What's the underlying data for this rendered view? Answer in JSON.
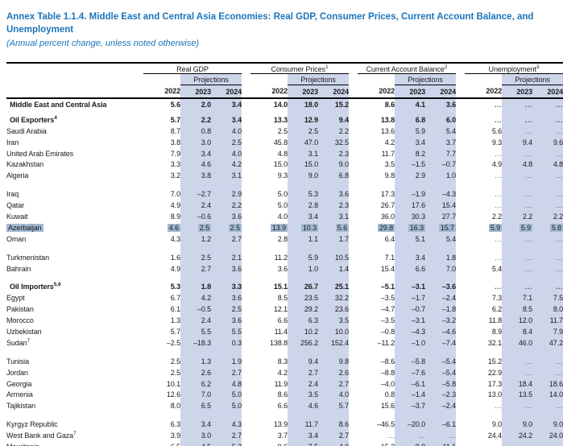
{
  "title": {
    "line1": "Annex Table 1.1.4. Middle East and Central Asia Economies: Real GDP, Consumer Prices, Current Account Balance, and",
    "line2": "Unemployment",
    "subtitle": "(Annual percent change, unless noted otherwise)"
  },
  "colors": {
    "title_blue": "#1b75bc",
    "projection_shade": "#cdd5ea",
    "selection_highlight": "#a3b9d4",
    "rule_black": "#000000"
  },
  "header": {
    "groups": [
      {
        "label": "Real GDP",
        "sup": ""
      },
      {
        "label": "Consumer Prices",
        "sup": "1"
      },
      {
        "label": "Current Account Balance",
        "sup": "2"
      },
      {
        "label": "Unemployment",
        "sup": "3"
      }
    ],
    "projections_label": "Projections",
    "years": [
      "2022",
      "2023",
      "2024"
    ]
  },
  "rows": [
    {
      "name": "Middle East and Central Asia",
      "sup": "",
      "style": "group",
      "highlight": false,
      "gap_before": "",
      "values": [
        "5.6",
        "2.0",
        "3.4",
        "14.0",
        "18.0",
        "15.2",
        "8.6",
        "4.1",
        "3.6",
        "...",
        "...",
        "..."
      ]
    },
    {
      "name": "Oil Exporters",
      "sup": "4",
      "style": "group",
      "highlight": false,
      "gap_before": "small",
      "values": [
        "5.7",
        "2.2",
        "3.4",
        "13.3",
        "12.9",
        "9.4",
        "13.8",
        "6.8",
        "6.0",
        "...",
        "...",
        "..."
      ]
    },
    {
      "name": "Saudi Arabia",
      "sup": "",
      "style": "country",
      "highlight": false,
      "gap_before": "",
      "values": [
        "8.7",
        "0.8",
        "4.0",
        "2.5",
        "2.5",
        "2.2",
        "13.6",
        "5.9",
        "5.4",
        "5.6",
        "...",
        "..."
      ]
    },
    {
      "name": "Iran",
      "sup": "",
      "style": "country",
      "highlight": false,
      "gap_before": "",
      "values": [
        "3.8",
        "3.0",
        "2.5",
        "45.8",
        "47.0",
        "32.5",
        "4.2",
        "3.4",
        "3.7",
        "9.3",
        "9.4",
        "9.6"
      ]
    },
    {
      "name": "United Arab Emirates",
      "sup": "",
      "style": "country",
      "highlight": false,
      "gap_before": "",
      "values": [
        "7.9",
        "3.4",
        "4.0",
        "4.8",
        "3.1",
        "2.3",
        "11.7",
        "8.2",
        "7.7",
        "...",
        "...",
        "..."
      ]
    },
    {
      "name": "Kazakhstan",
      "sup": "",
      "style": "country",
      "highlight": false,
      "gap_before": "",
      "values": [
        "3.3",
        "4.6",
        "4.2",
        "15.0",
        "15.0",
        "9.0",
        "3.5",
        "–1.5",
        "–0.7",
        "4.9",
        "4.8",
        "4.8"
      ]
    },
    {
      "name": "Algeria",
      "sup": "",
      "style": "country",
      "highlight": false,
      "gap_before": "",
      "values": [
        "3.2",
        "3.8",
        "3.1",
        "9.3",
        "9.0",
        "6.8",
        "9.8",
        "2.9",
        "1.0",
        "...",
        "...",
        "..."
      ]
    },
    {
      "name": "Iraq",
      "sup": "",
      "style": "country",
      "highlight": false,
      "gap_before": "normal",
      "values": [
        "7.0",
        "–2.7",
        "2.9",
        "5.0",
        "5.3",
        "3.6",
        "17.3",
        "–1.9",
        "–4.3",
        "...",
        "...",
        "..."
      ]
    },
    {
      "name": "Qatar",
      "sup": "",
      "style": "country",
      "highlight": false,
      "gap_before": "",
      "values": [
        "4.9",
        "2.4",
        "2.2",
        "5.0",
        "2.8",
        "2.3",
        "26.7",
        "17.6",
        "15.4",
        "...",
        "...",
        "..."
      ]
    },
    {
      "name": "Kuwait",
      "sup": "",
      "style": "country",
      "highlight": false,
      "gap_before": "",
      "values": [
        "8.9",
        "–0.6",
        "3.6",
        "4.0",
        "3.4",
        "3.1",
        "36.0",
        "30.3",
        "27.7",
        "2.2",
        "2.2",
        "2.2"
      ]
    },
    {
      "name": "Azerbaijan",
      "sup": "",
      "style": "country",
      "highlight": true,
      "gap_before": "",
      "values": [
        "4.6",
        "2.5",
        "2.5",
        "13.9",
        "10.3",
        "5.6",
        "29.8",
        "16.3",
        "15.7",
        "5.9",
        "5.9",
        "5.8"
      ]
    },
    {
      "name": "Oman",
      "sup": "",
      "style": "country",
      "highlight": false,
      "gap_before": "",
      "values": [
        "4.3",
        "1.2",
        "2.7",
        "2.8",
        "1.1",
        "1.7",
        "6.4",
        "5.1",
        "5.4",
        "...",
        "...",
        "..."
      ]
    },
    {
      "name": "Turkmenistan",
      "sup": "",
      "style": "country",
      "highlight": false,
      "gap_before": "normal",
      "values": [
        "1.6",
        "2.5",
        "2.1",
        "11.2",
        "5.9",
        "10.5",
        "7.1",
        "3.4",
        "1.8",
        "...",
        "...",
        "..."
      ]
    },
    {
      "name": "Bahrain",
      "sup": "",
      "style": "country",
      "highlight": false,
      "gap_before": "",
      "values": [
        "4.9",
        "2.7",
        "3.6",
        "3.6",
        "1.0",
        "1.4",
        "15.4",
        "6.6",
        "7.0",
        "5.4",
        "...",
        "..."
      ]
    },
    {
      "name": "Oil Importers",
      "sup": "5,6",
      "style": "group",
      "highlight": false,
      "gap_before": "normal",
      "values": [
        "5.3",
        "1.8",
        "3.3",
        "15.1",
        "26.7",
        "25.1",
        "–5.1",
        "–3.1",
        "–3.6",
        "...",
        "...",
        "..."
      ]
    },
    {
      "name": "Egypt",
      "sup": "",
      "style": "country",
      "highlight": false,
      "gap_before": "",
      "values": [
        "6.7",
        "4.2",
        "3.6",
        "8.5",
        "23.5",
        "32.2",
        "–3.5",
        "–1.7",
        "–2.4",
        "7.3",
        "7.1",
        "7.5"
      ]
    },
    {
      "name": "Pakistan",
      "sup": "",
      "style": "country",
      "highlight": false,
      "gap_before": "",
      "values": [
        "6.1",
        "–0.5",
        "2.5",
        "12.1",
        "29.2",
        "23.6",
        "–4.7",
        "–0.7",
        "–1.8",
        "6.2",
        "8.5",
        "8.0"
      ]
    },
    {
      "name": "Morocco",
      "sup": "",
      "style": "country",
      "highlight": false,
      "gap_before": "",
      "values": [
        "1.3",
        "2.4",
        "3.6",
        "6.6",
        "6.3",
        "3.5",
        "–3.5",
        "–3.1",
        "–3.2",
        "11.8",
        "12.0",
        "11.7"
      ]
    },
    {
      "name": "Uzbekistan",
      "sup": "",
      "style": "country",
      "highlight": false,
      "gap_before": "",
      "values": [
        "5.7",
        "5.5",
        "5.5",
        "11.4",
        "10.2",
        "10.0",
        "–0.8",
        "–4.3",
        "–4.6",
        "8.9",
        "8.4",
        "7.9"
      ]
    },
    {
      "name": "Sudan",
      "sup": "7",
      "style": "country",
      "highlight": false,
      "gap_before": "",
      "values": [
        "–2.5",
        "–18.3",
        "0.3",
        "138.8",
        "256.2",
        "152.4",
        "–11.2",
        "–1.0",
        "–7.4",
        "32.1",
        "46.0",
        "47.2"
      ]
    },
    {
      "name": "Tunisia",
      "sup": "",
      "style": "country",
      "highlight": false,
      "gap_before": "normal",
      "values": [
        "2.5",
        "1.3",
        "1.9",
        "8.3",
        "9.4",
        "9.8",
        "–8.6",
        "–5.8",
        "–5.4",
        "15.2",
        "...",
        "..."
      ]
    },
    {
      "name": "Jordan",
      "sup": "",
      "style": "country",
      "highlight": false,
      "gap_before": "",
      "values": [
        "2.5",
        "2.6",
        "2.7",
        "4.2",
        "2.7",
        "2.6",
        "–8.8",
        "–7.6",
        "–5.4",
        "22.9",
        "...",
        "..."
      ]
    },
    {
      "name": "Georgia",
      "sup": "",
      "style": "country",
      "highlight": false,
      "gap_before": "",
      "values": [
        "10.1",
        "6.2",
        "4.8",
        "11.9",
        "2.4",
        "2.7",
        "–4.0",
        "–6.1",
        "–5.8",
        "17.3",
        "18.4",
        "18.6"
      ]
    },
    {
      "name": "Armenia",
      "sup": "",
      "style": "country",
      "highlight": false,
      "gap_before": "",
      "values": [
        "12.6",
        "7.0",
        "5.0",
        "8.6",
        "3.5",
        "4.0",
        "0.8",
        "–1.4",
        "–2.3",
        "13.0",
        "13.5",
        "14.0"
      ]
    },
    {
      "name": "Tajikistan",
      "sup": "",
      "style": "country",
      "highlight": false,
      "gap_before": "",
      "values": [
        "8.0",
        "6.5",
        "5.0",
        "6.6",
        "4.6",
        "5.7",
        "15.6",
        "–3.7",
        "–2.4",
        "...",
        "...",
        "..."
      ]
    },
    {
      "name": "Kyrgyz Republic",
      "sup": "",
      "style": "country",
      "highlight": false,
      "gap_before": "normal",
      "values": [
        "6.3",
        "3.4",
        "4.3",
        "13.9",
        "11.7",
        "8.6",
        "–46.5",
        "–20.0",
        "–6.1",
        "9.0",
        "9.0",
        "9.0"
      ]
    },
    {
      "name": "West Bank and Gaza",
      "sup": "7",
      "style": "country",
      "highlight": false,
      "gap_before": "",
      "values": [
        "3.9",
        "3.0",
        "2.7",
        "3.7",
        "3.4",
        "2.7",
        "...",
        "...",
        "...",
        "24.4",
        "24.2",
        "24.0"
      ]
    },
    {
      "name": "Mauritania",
      "sup": "",
      "style": "country",
      "highlight": false,
      "gap_before": "",
      "values": [
        "6.5",
        "4.5",
        "5.3",
        "9.6",
        "7.5",
        "4.0",
        "–15.3",
        "–9.9",
        "–11.1",
        "...",
        "...",
        "..."
      ]
    }
  ]
}
